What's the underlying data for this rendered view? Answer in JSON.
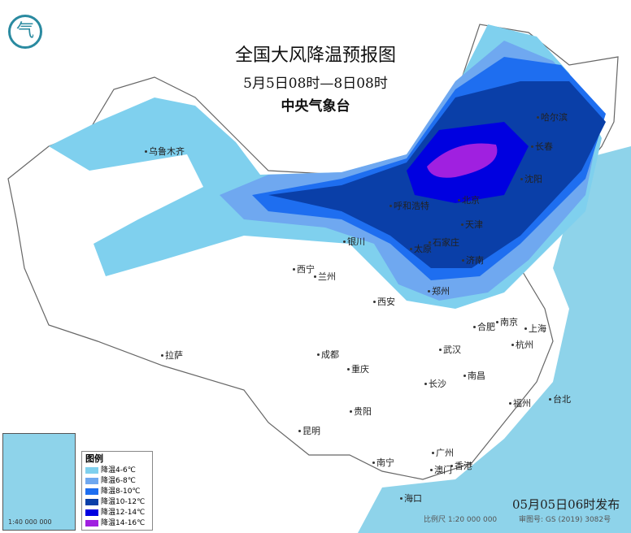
{
  "title": "全国大风降温预报图",
  "subtitle": "5月5日08时—8日08时",
  "agency": "中央气象台",
  "legend": {
    "title": "图例",
    "items": [
      {
        "label": "降温4-6℃",
        "color": "#7fd0ee"
      },
      {
        "label": "降温6-8℃",
        "color": "#6fa8f0"
      },
      {
        "label": "降温8-10℃",
        "color": "#1e6ef0"
      },
      {
        "label": "降温10-12℃",
        "color": "#0a3fa8"
      },
      {
        "label": "降温12-14℃",
        "color": "#0000e0"
      },
      {
        "label": "降温14-16℃",
        "color": "#a020e0"
      }
    ]
  },
  "cities": [
    "乌鲁木齐",
    "哈尔滨",
    "长春",
    "沈阳",
    "呼和浩特",
    "北京",
    "天津",
    "石家庄",
    "太原",
    "银川",
    "济南",
    "西宁",
    "兰州",
    "郑州",
    "西安",
    "合肥",
    "南京",
    "上海",
    "杭州",
    "武汉",
    "成都",
    "拉萨",
    "重庆",
    "长沙",
    "南昌",
    "福州",
    "台北",
    "贵阳",
    "昆明",
    "南宁",
    "广州",
    "澳门",
    "香港",
    "海口"
  ],
  "inset": {
    "scale": "1:40 000 000"
  },
  "issued": "05月05日06时发布",
  "scale": "比例尺 1:20 000 000",
  "review_no": "审图号: GS (2019) 3082号",
  "logo_char": "气"
}
